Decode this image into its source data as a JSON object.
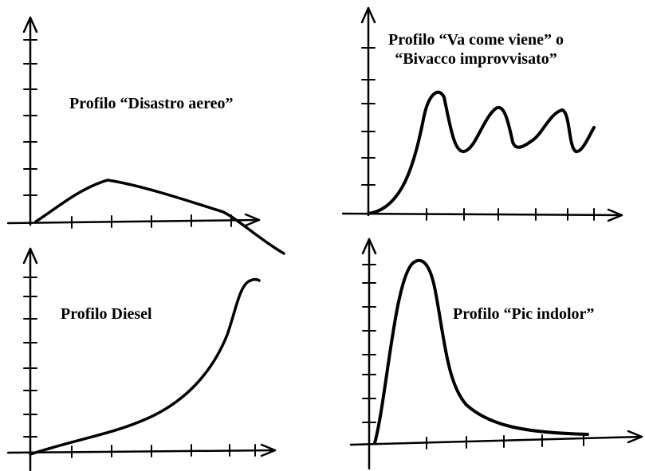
{
  "panels": {
    "top_left": {
      "title": "Profilo “Disastro aereo”"
    },
    "top_right": {
      "title_line1": "Profilo “Va come viene” o",
      "title_line2": "“Bivacco improvvisato”"
    },
    "bottom_left": {
      "title": "Profilo Diesel"
    },
    "bottom_right": {
      "title": "Profilo “Pic indolor”"
    }
  },
  "colors": {
    "ink": "#000000",
    "background": "#ffffff"
  }
}
